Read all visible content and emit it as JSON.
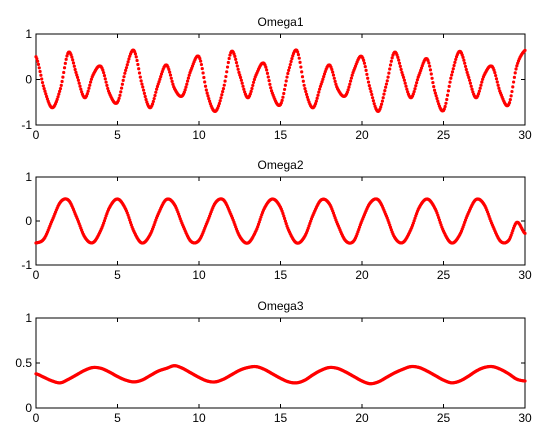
{
  "chart_data": [
    {
      "type": "scatter",
      "title": "Omega1",
      "xlabel": "",
      "ylabel": "",
      "xlim": [
        0,
        30
      ],
      "ylim": [
        -1,
        1
      ],
      "xticks": [
        "0",
        "5",
        "10",
        "15",
        "20",
        "25",
        "30"
      ],
      "yticks": [
        "-1",
        "0",
        "1"
      ],
      "grid": false,
      "color": "#ff0000",
      "series": [
        {
          "x": [
            0,
            0.5,
            1,
            1.5,
            2,
            2.5,
            3,
            3.5,
            4,
            4.5,
            5,
            5.5,
            6,
            6.5,
            7,
            7.5,
            8,
            8.5,
            9,
            9.5,
            10,
            10.5,
            11,
            11.5,
            12,
            12.5,
            13,
            13.5,
            14,
            14.5,
            15,
            15.5,
            16,
            16.5,
            17,
            17.5,
            18,
            18.5,
            19,
            19.5,
            20,
            20.5,
            21,
            21.5,
            22,
            22.5,
            23,
            23.5,
            24,
            24.5,
            25,
            25.5,
            26,
            26.5,
            27,
            27.5,
            28,
            28.5,
            29,
            29.5,
            30
          ],
          "y": [
            0.5,
            -0.2,
            -0.62,
            -0.2,
            0.6,
            0.1,
            -0.4,
            0.1,
            0.28,
            -0.3,
            -0.5,
            0.2,
            0.64,
            -0.1,
            -0.62,
            -0.1,
            0.32,
            -0.2,
            -0.35,
            0.2,
            0.5,
            -0.3,
            -0.7,
            -0.2,
            0.62,
            0.1,
            -0.4,
            0.1,
            0.35,
            -0.3,
            -0.55,
            0.2,
            0.64,
            -0.2,
            -0.62,
            -0.1,
            0.32,
            -0.2,
            -0.35,
            0.2,
            0.5,
            -0.2,
            -0.7,
            -0.1,
            0.6,
            0.1,
            -0.4,
            0.1,
            0.45,
            -0.3,
            -0.68,
            0.1,
            0.62,
            0.1,
            -0.4,
            0.1,
            0.28,
            -0.3,
            -0.55,
            0.3,
            0.64
          ]
        }
      ]
    },
    {
      "type": "scatter",
      "title": "Omega2",
      "xlabel": "",
      "ylabel": "",
      "xlim": [
        0,
        30
      ],
      "ylim": [
        -1,
        1
      ],
      "xticks": [
        "0",
        "5",
        "10",
        "15",
        "20",
        "25",
        "30"
      ],
      "yticks": [
        "-1",
        "0",
        "1"
      ],
      "grid": false,
      "color": "#ff0000",
      "series": [
        {
          "x": [
            0,
            0.5,
            1,
            1.5,
            2,
            2.5,
            3,
            3.5,
            4,
            4.5,
            5,
            5.5,
            6,
            6.5,
            7,
            7.5,
            8,
            8.5,
            9,
            9.5,
            10,
            10.5,
            11,
            11.5,
            12,
            12.5,
            13,
            13.5,
            14,
            14.5,
            15,
            15.5,
            16,
            16.5,
            17,
            17.5,
            18,
            18.5,
            19,
            19.5,
            20,
            20.5,
            21,
            21.5,
            22,
            22.5,
            23,
            23.5,
            24,
            24.5,
            25,
            25.5,
            26,
            26.5,
            27,
            27.5,
            28,
            28.5,
            29,
            29.5,
            30
          ],
          "y": [
            -0.5,
            -0.4,
            0.02,
            0.43,
            0.47,
            0.08,
            -0.37,
            -0.49,
            -0.19,
            0.3,
            0.5,
            0.27,
            -0.23,
            -0.5,
            -0.31,
            0.16,
            0.49,
            0.37,
            -0.09,
            -0.46,
            -0.44,
            -0.03,
            0.41,
            0.48,
            0.11,
            -0.35,
            -0.5,
            -0.22,
            0.28,
            0.5,
            0.31,
            -0.21,
            -0.5,
            -0.34,
            0.14,
            0.48,
            0.39,
            -0.07,
            -0.45,
            -0.45,
            0.01,
            0.41,
            0.48,
            0.11,
            -0.37,
            -0.49,
            -0.19,
            0.3,
            0.5,
            0.27,
            -0.23,
            -0.5,
            -0.31,
            0.16,
            0.49,
            0.37,
            -0.09,
            -0.46,
            -0.44,
            -0.03,
            -0.28
          ]
        }
      ]
    },
    {
      "type": "scatter",
      "title": "Omega3",
      "xlabel": "",
      "ylabel": "",
      "xlim": [
        0,
        30
      ],
      "ylim": [
        0,
        1
      ],
      "xticks": [
        "0",
        "5",
        "10",
        "15",
        "20",
        "25",
        "30"
      ],
      "yticks": [
        "0",
        "0.5",
        "1"
      ],
      "grid": false,
      "color": "#ff0000",
      "series": [
        {
          "x": [
            0,
            0.5,
            1,
            1.5,
            2,
            2.5,
            3,
            3.5,
            4,
            4.5,
            5,
            5.5,
            6,
            6.5,
            7,
            7.5,
            8,
            8.5,
            9,
            9.5,
            10,
            10.5,
            11,
            11.5,
            12,
            12.5,
            13,
            13.5,
            14,
            14.5,
            15,
            15.5,
            16,
            16.5,
            17,
            17.5,
            18,
            18.5,
            19,
            19.5,
            20,
            20.5,
            21,
            21.5,
            22,
            22.5,
            23,
            23.5,
            24,
            24.5,
            25,
            25.5,
            26,
            26.5,
            27,
            27.5,
            28,
            28.5,
            29,
            29.5,
            30
          ],
          "y": [
            0.38,
            0.34,
            0.3,
            0.28,
            0.32,
            0.37,
            0.42,
            0.45,
            0.44,
            0.4,
            0.35,
            0.31,
            0.29,
            0.31,
            0.36,
            0.41,
            0.44,
            0.47,
            0.44,
            0.39,
            0.34,
            0.3,
            0.29,
            0.32,
            0.37,
            0.42,
            0.45,
            0.46,
            0.43,
            0.38,
            0.33,
            0.29,
            0.28,
            0.31,
            0.37,
            0.42,
            0.45,
            0.44,
            0.4,
            0.35,
            0.3,
            0.27,
            0.29,
            0.34,
            0.39,
            0.43,
            0.46,
            0.45,
            0.41,
            0.36,
            0.31,
            0.28,
            0.3,
            0.35,
            0.41,
            0.45,
            0.46,
            0.43,
            0.38,
            0.32,
            0.3
          ]
        }
      ]
    }
  ]
}
